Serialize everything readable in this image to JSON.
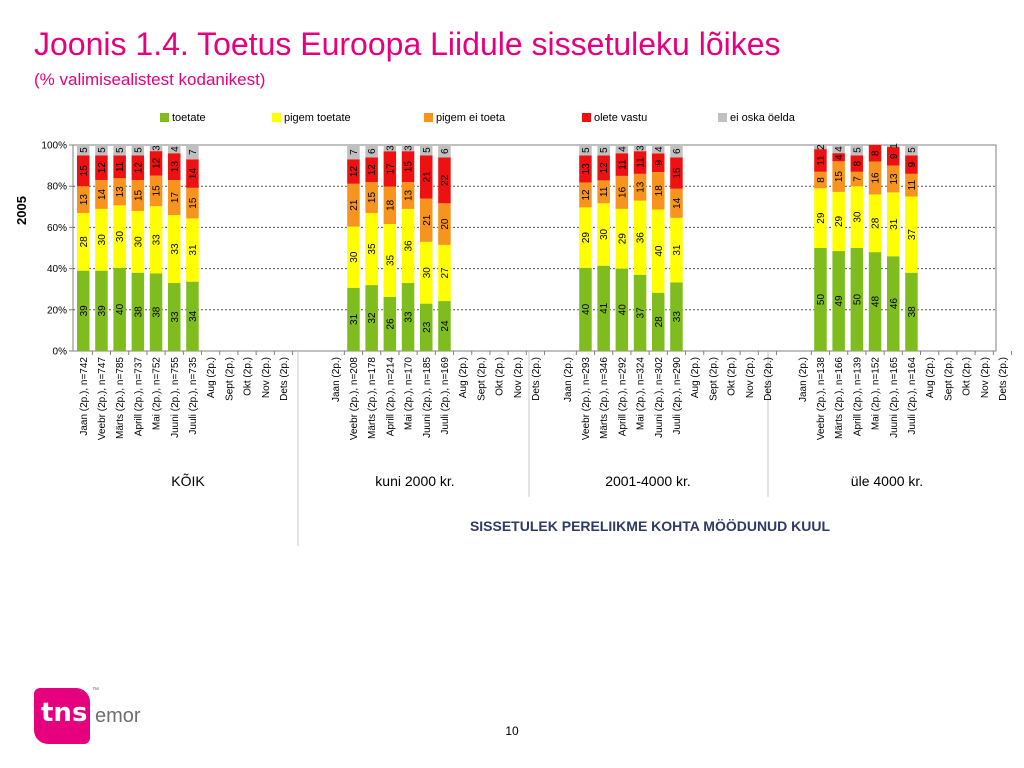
{
  "title": "Joonis 1.4. Toetus Euroopa Liidule sissetuleku lõikes",
  "subtitle": "(% valimisealistest kodanikest)",
  "y_axis_title": "2005",
  "group_axis_title": "SISSETULEK PERELIIKME KOHTA MÖÖDUNUD KUUL",
  "page_number": "10",
  "logo": {
    "tns": "tns",
    "emor": "emor",
    "tm": "™"
  },
  "colors": {
    "toetate": "#7fbd1f",
    "pigem_toetate": "#ffff00",
    "pigem_ei_toeta": "#f7941d",
    "olete_vastu": "#ee1111",
    "ei_oska": "#c0c0c0"
  },
  "chart_data": {
    "type": "bar",
    "stacked": true,
    "ylim": [
      0,
      100
    ],
    "y_ticks": [
      "0%",
      "20%",
      "40%",
      "60%",
      "80%",
      "100%"
    ],
    "grid": "dotted horizontal",
    "legend_position": "top",
    "series": [
      {
        "name": "toetate",
        "color": "#7fbd1f"
      },
      {
        "name": "pigem toetate",
        "color": "#ffff00"
      },
      {
        "name": "pigem ei toeta",
        "color": "#f7941d"
      },
      {
        "name": "olete vastu",
        "color": "#ee1111"
      },
      {
        "name": "ei oska öelda",
        "color": "#c0c0c0"
      }
    ],
    "groups": [
      {
        "name": "KÕIK",
        "categories": [
          "Jaan (2p.), n=742",
          "Veebr (2p.), n=747",
          "Märts (2p.), n=785",
          "Aprill (2p.), n=737",
          "Mai (2p.), n=752",
          "Juuni (2p.), n=755",
          "Juuli (2p.), n=735",
          "Aug (2p.)",
          "Sept (2p.)",
          "Okt (2p.)",
          "Nov (2p.)",
          "Dets (2p.)"
        ],
        "bars": [
          [
            39,
            28,
            13,
            15,
            5
          ],
          [
            39,
            30,
            14,
            12,
            5
          ],
          [
            40,
            30,
            13,
            11,
            5
          ],
          [
            38,
            30,
            15,
            12,
            5
          ],
          [
            38,
            33,
            15,
            12,
            3
          ],
          [
            33,
            33,
            17,
            13,
            4
          ],
          [
            34,
            31,
            15,
            14,
            7
          ]
        ]
      },
      {
        "name": "kuni 2000 kr.",
        "categories": [
          "Jaan (2p.)",
          "Veebr (2p.), n=208",
          "Märts (2p.), n=178",
          "Aprill (2p.), n=214",
          "Mai (2p.), n=170",
          "Juuni (2p.), n=185",
          "Juuli (2p.), n=169",
          "Aug (2p.)",
          "Sept (2p.)",
          "Okt (2p.)",
          "Nov (2p.)",
          "Dets (2p.)"
        ],
        "bars": [
          null,
          [
            31,
            30,
            21,
            12,
            7
          ],
          [
            32,
            35,
            15,
            12,
            6
          ],
          [
            26,
            35,
            18,
            17,
            3
          ],
          [
            33,
            36,
            13,
            15,
            3
          ],
          [
            23,
            30,
            21,
            21,
            5
          ],
          [
            24,
            27,
            20,
            22,
            6
          ]
        ]
      },
      {
        "name": "2001-4000 kr.",
        "categories": [
          "Jaan (2p.)",
          "Veebr (2p.), n=293",
          "Märts (2p.), n=346",
          "Aprill (2p.), n=292",
          "Mai (2p.), n=324",
          "Juuni (2p.), n=302",
          "Juuli (2p.), n=290",
          "Aug (2p.)",
          "Sept (2p.)",
          "Okt (2p.)",
          "Nov (2p.)",
          "Dets (2p.)"
        ],
        "bars": [
          null,
          [
            40,
            29,
            12,
            13,
            5
          ],
          [
            41,
            30,
            11,
            12,
            5
          ],
          [
            40,
            29,
            16,
            11,
            4
          ],
          [
            37,
            36,
            13,
            11,
            3
          ],
          [
            28,
            40,
            18,
            9,
            4
          ],
          [
            33,
            31,
            14,
            15,
            6
          ]
        ]
      },
      {
        "name": "üle 4000 kr.",
        "categories": [
          "Jaan (2p.)",
          "Veebr (2p.), n=138",
          "Märts (2p.), n=166",
          "Aprill (2p.), n=139",
          "Mai (2p.), n=152",
          "Juuni (2p.), n=165",
          "Juuli (2p.), n=164",
          "Aug (2p.)",
          "Sept (2p.)",
          "Okt (2p.)",
          "Nov (2p.)",
          "Dets (2p.)"
        ],
        "bars": [
          null,
          [
            50,
            29,
            8,
            11,
            2
          ],
          [
            49,
            29,
            15,
            4,
            4
          ],
          [
            50,
            30,
            7,
            8,
            5
          ],
          [
            48,
            28,
            16,
            8,
            0
          ],
          [
            46,
            31,
            13,
            9,
            1
          ],
          [
            38,
            37,
            11,
            9,
            5
          ]
        ]
      }
    ]
  }
}
